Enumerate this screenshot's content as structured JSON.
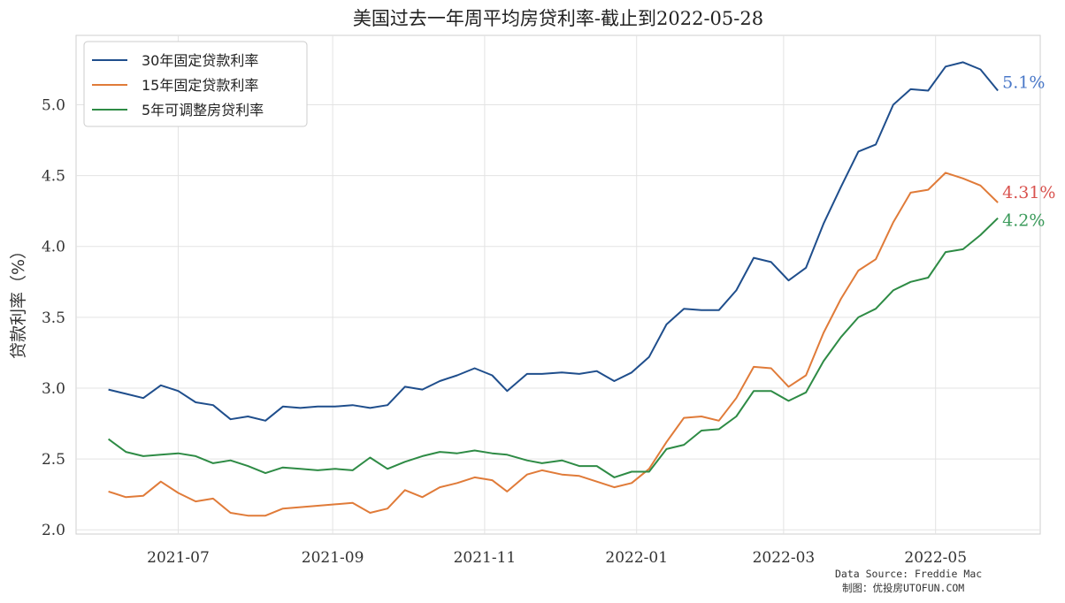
{
  "chart_data": {
    "type": "line",
    "title": "美国过去一年周平均房贷利率-截止到2022-05-28",
    "ylabel": "贷款利率（%）",
    "xlabel": "",
    "ylim": [
      1.97,
      5.49
    ],
    "xlim": [
      "2021-05-21",
      "2022-06-12"
    ],
    "yticks": [
      2.0,
      2.5,
      3.0,
      3.5,
      4.0,
      4.5,
      5.0
    ],
    "xticks": [
      {
        "date": "2021-07-01",
        "label": "2021-07"
      },
      {
        "date": "2021-09-01",
        "label": "2021-09"
      },
      {
        "date": "2021-11-01",
        "label": "2021-11"
      },
      {
        "date": "2022-01-01",
        "label": "2022-01"
      },
      {
        "date": "2022-03-01",
        "label": "2022-03"
      },
      {
        "date": "2022-05-01",
        "label": "2022-05"
      }
    ],
    "grid": true,
    "legend": "top-left",
    "x": [
      "2021-06-03",
      "2021-06-10",
      "2021-06-17",
      "2021-06-24",
      "2021-07-01",
      "2021-07-08",
      "2021-07-15",
      "2021-07-22",
      "2021-07-29",
      "2021-08-05",
      "2021-08-12",
      "2021-08-19",
      "2021-08-26",
      "2021-09-02",
      "2021-09-09",
      "2021-09-16",
      "2021-09-23",
      "2021-09-30",
      "2021-10-07",
      "2021-10-14",
      "2021-10-21",
      "2021-10-28",
      "2021-11-04",
      "2021-11-10",
      "2021-11-18",
      "2021-11-24",
      "2021-12-02",
      "2021-12-09",
      "2021-12-16",
      "2021-12-23",
      "2021-12-30",
      "2022-01-06",
      "2022-01-13",
      "2022-01-20",
      "2022-01-27",
      "2022-02-03",
      "2022-02-10",
      "2022-02-17",
      "2022-02-24",
      "2022-03-03",
      "2022-03-10",
      "2022-03-17",
      "2022-03-24",
      "2022-03-31",
      "2022-04-07",
      "2022-04-14",
      "2022-04-21",
      "2022-04-28",
      "2022-05-05",
      "2022-05-12",
      "2022-05-19",
      "2022-05-26"
    ],
    "series": [
      {
        "name": "30年固定贷款利率",
        "color": "#1f4e8c",
        "end_label": "5.1%",
        "label_color": "#4a78c8",
        "values": [
          2.99,
          2.96,
          2.93,
          3.02,
          2.98,
          2.9,
          2.88,
          2.78,
          2.8,
          2.77,
          2.87,
          2.86,
          2.87,
          2.87,
          2.88,
          2.86,
          2.88,
          3.01,
          2.99,
          3.05,
          3.09,
          3.14,
          3.09,
          2.98,
          3.1,
          3.1,
          3.11,
          3.1,
          3.12,
          3.05,
          3.11,
          3.22,
          3.45,
          3.56,
          3.55,
          3.55,
          3.69,
          3.92,
          3.89,
          3.76,
          3.85,
          4.16,
          4.42,
          4.67,
          4.72,
          5.0,
          5.11,
          5.1,
          5.27,
          5.3,
          5.25,
          5.1
        ]
      },
      {
        "name": "15年固定贷款利率",
        "color": "#e07b39",
        "end_label": "4.31%",
        "label_color": "#d9534f",
        "values": [
          2.27,
          2.23,
          2.24,
          2.34,
          2.26,
          2.2,
          2.22,
          2.12,
          2.1,
          2.1,
          2.15,
          2.16,
          2.17,
          2.18,
          2.19,
          2.12,
          2.15,
          2.28,
          2.23,
          2.3,
          2.33,
          2.37,
          2.35,
          2.27,
          2.39,
          2.42,
          2.39,
          2.38,
          2.34,
          2.3,
          2.33,
          2.43,
          2.62,
          2.79,
          2.8,
          2.77,
          2.93,
          3.15,
          3.14,
          3.01,
          3.09,
          3.39,
          3.63,
          3.83,
          3.91,
          4.17,
          4.38,
          4.4,
          4.52,
          4.48,
          4.43,
          4.31
        ]
      },
      {
        "name": "5年可调整房贷利率",
        "color": "#2e8b45",
        "end_label": "4.2%",
        "label_color": "#3a9a5a",
        "values": [
          2.64,
          2.55,
          2.52,
          2.53,
          2.54,
          2.52,
          2.47,
          2.49,
          2.45,
          2.4,
          2.44,
          2.43,
          2.42,
          2.43,
          2.42,
          2.51,
          2.43,
          2.48,
          2.52,
          2.55,
          2.54,
          2.56,
          2.54,
          2.53,
          2.49,
          2.47,
          2.49,
          2.45,
          2.45,
          2.37,
          2.41,
          2.41,
          2.57,
          2.6,
          2.7,
          2.71,
          2.8,
          2.98,
          2.98,
          2.91,
          2.97,
          3.19,
          3.36,
          3.5,
          3.56,
          3.69,
          3.75,
          3.78,
          3.96,
          3.98,
          4.08,
          4.2
        ]
      }
    ],
    "source_lines": [
      "Data Source: Freddie Mac",
      "制图：优投房UTOFUN.COM"
    ]
  }
}
